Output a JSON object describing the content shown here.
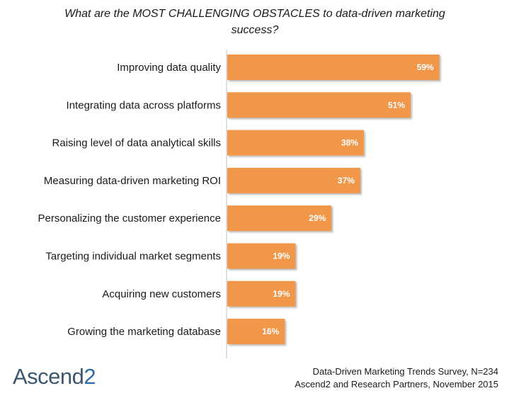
{
  "title": "What are the MOST CHALLENGING OBSTACLES to data-driven marketing success?",
  "chart_data": {
    "type": "bar",
    "orientation": "horizontal",
    "title": "What are the MOST CHALLENGING OBSTACLES to data-driven marketing success?",
    "categories": [
      "Improving data quality",
      "Integrating data across platforms",
      "Raising level of data analytical skills",
      "Measuring data-driven marketing ROI",
      "Personalizing the customer experience",
      "Targeting individual market segments",
      "Acquiring new customers",
      "Growing the marketing database"
    ],
    "values": [
      59,
      51,
      38,
      37,
      29,
      19,
      19,
      16
    ],
    "value_labels": [
      "59%",
      "51%",
      "38%",
      "37%",
      "29%",
      "19%",
      "19%",
      "16%"
    ],
    "xlim": [
      0,
      60
    ],
    "bar_color": "#f0974a",
    "label_color": "#ffffff",
    "grid": false,
    "legend": "none"
  },
  "logo": {
    "text": "Ascend",
    "digit": "2"
  },
  "source": {
    "line1": "Data-Driven Marketing Trends Survey, N=234",
    "line2": "Ascend2 and Research Partners, November 2015"
  },
  "colors": {
    "accent": "#f0974a",
    "logo_text": "#3d5670",
    "logo_digit": "#2c6cad"
  }
}
